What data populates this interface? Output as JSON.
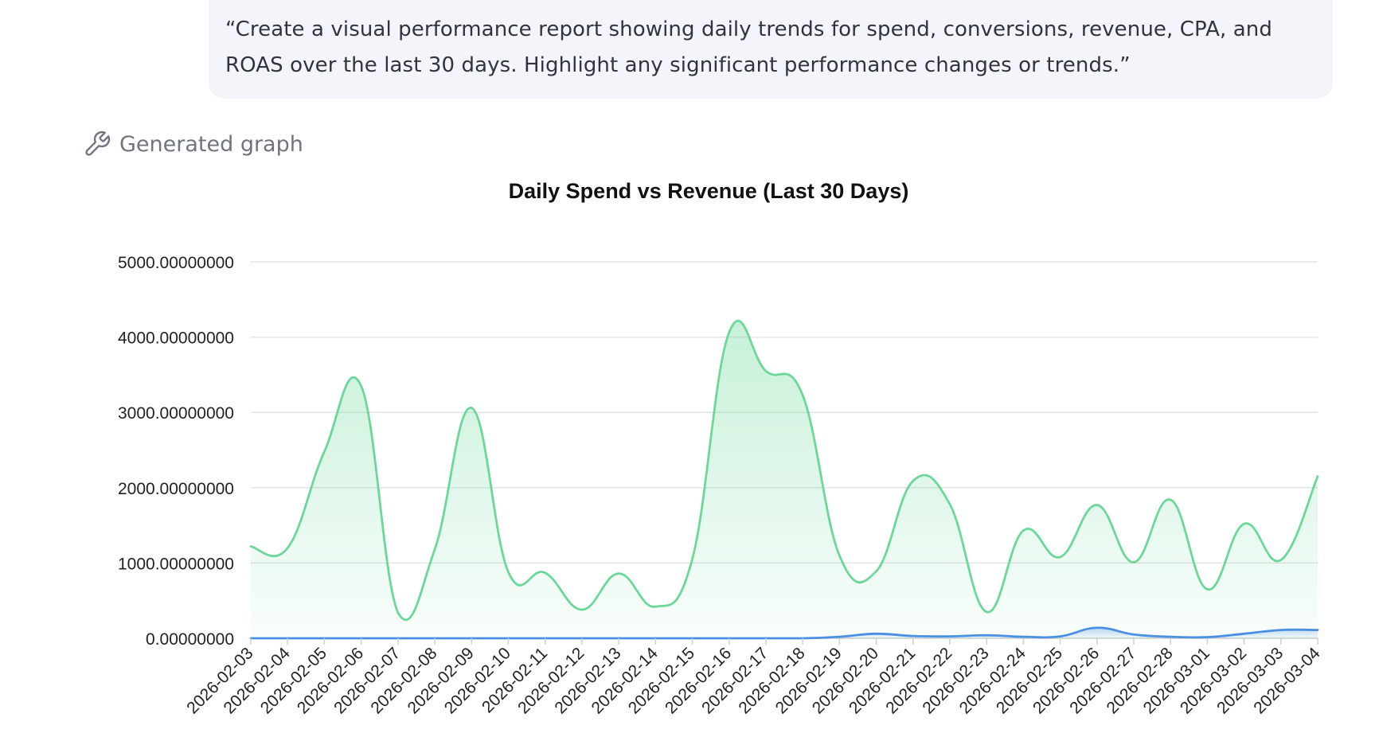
{
  "message": {
    "prompt": "“Create a visual performance report showing daily trends for spend, conversions, revenue, CPA, and ROAS over the last 30 days. Highlight any significant performance changes or trends.”"
  },
  "tool": {
    "label": "Generated graph",
    "icon": "wrench-icon"
  },
  "chart_data": {
    "type": "area",
    "title": "Daily Spend vs Revenue (Last 30 Days)",
    "xlabel": "",
    "ylabel": "",
    "ylim": [
      0,
      5000
    ],
    "grid": true,
    "legend": "none",
    "yticks": [
      "0.00000000",
      "1000.00000000",
      "2000.00000000",
      "3000.00000000",
      "4000.00000000",
      "5000.00000000"
    ],
    "categories": [
      "2026-02-03",
      "2026-02-04",
      "2026-02-05",
      "2026-02-06",
      "2026-02-07",
      "2026-02-08",
      "2026-02-09",
      "2026-02-10",
      "2026-02-11",
      "2026-02-12",
      "2026-02-13",
      "2026-02-14",
      "2026-02-15",
      "2026-02-16",
      "2026-02-17",
      "2026-02-18",
      "2026-02-19",
      "2026-02-20",
      "2026-02-21",
      "2026-02-22",
      "2026-02-23",
      "2026-02-24",
      "2026-02-25",
      "2026-02-26",
      "2026-02-27",
      "2026-02-28",
      "2026-03-01",
      "2026-03-02",
      "2026-03-03",
      "2026-03-04"
    ],
    "series": [
      {
        "color": "#6bd89a",
        "fill": "#d9f6e6",
        "values": [
          1220,
          1200,
          2480,
          3350,
          340,
          1180,
          3060,
          880,
          870,
          380,
          860,
          420,
          1050,
          4060,
          3550,
          3230,
          1100,
          890,
          2090,
          1780,
          350,
          1430,
          1080,
          1770,
          1010,
          1840,
          650,
          1520,
          1040,
          2150
        ]
      },
      {
        "color": "#4a90e2",
        "fill": "#dbe9f9",
        "values": [
          0,
          0,
          0,
          0,
          0,
          0,
          0,
          0,
          0,
          0,
          0,
          0,
          0,
          0,
          0,
          0,
          20,
          60,
          30,
          25,
          40,
          20,
          25,
          140,
          50,
          20,
          15,
          60,
          110,
          110
        ]
      }
    ]
  }
}
